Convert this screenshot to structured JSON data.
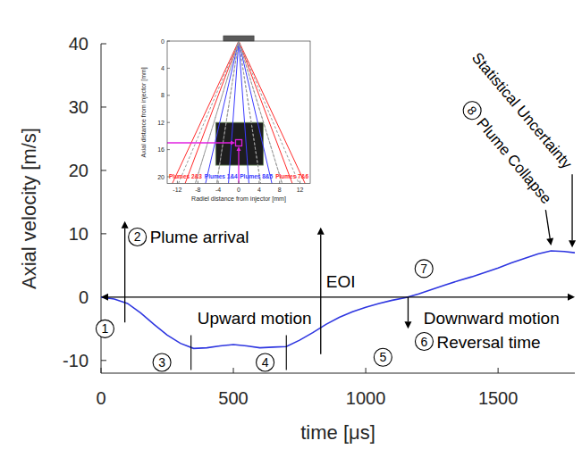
{
  "chart_data": [
    {
      "type": "line",
      "xlabel": "time [μs]",
      "ylabel": "Axial velocity [m/s]",
      "x": [
        0,
        50,
        100,
        150,
        200,
        250,
        300,
        350,
        400,
        450,
        500,
        550,
        600,
        650,
        700,
        750,
        800,
        850,
        900,
        950,
        1000,
        1050,
        1100,
        1150,
        1200,
        1250,
        1300,
        1350,
        1400,
        1450,
        1500,
        1550,
        1600,
        1650,
        1700,
        1750,
        1790
      ],
      "series": [
        {
          "color": "#2e36e0",
          "values": [
            0,
            -0.3,
            -1.0,
            -2.5,
            -4.3,
            -6.0,
            -7.3,
            -8.1,
            -8.0,
            -7.7,
            -7.5,
            -7.7,
            -8.0,
            -7.9,
            -7.8,
            -6.8,
            -5.6,
            -4.3,
            -3.2,
            -2.3,
            -1.6,
            -1.0,
            -0.5,
            -0.1,
            0.5,
            1.2,
            1.9,
            2.6,
            3.2,
            3.9,
            4.6,
            5.4,
            6.1,
            6.8,
            7.3,
            7.2,
            7.0
          ]
        }
      ],
      "xlim": [
        0,
        1790
      ],
      "ylim": [
        -12,
        40
      ],
      "xticks": [
        0,
        500,
        1000,
        1500
      ],
      "yticks": [
        -10,
        0,
        10,
        20,
        30,
        40
      ],
      "phase_boundaries": [
        340,
        700
      ],
      "phases": [
        {
          "label": "1",
          "x": 15,
          "y": -5
        },
        {
          "label": "3",
          "x": 230,
          "y": -10.3
        },
        {
          "label": "4",
          "x": 620,
          "y": -10.3
        },
        {
          "label": "5",
          "x": 1065,
          "y": -9.5
        },
        {
          "label": "7",
          "x": 1220,
          "y": 4.5
        }
      ],
      "events": [
        {
          "label": "Plume arrival",
          "phase": "2",
          "x": 90
        },
        {
          "label": "EOI",
          "x": 830
        },
        {
          "label": "Reversal time",
          "phase": "6",
          "x": 1160
        },
        {
          "label": "Plume Collapse",
          "phase": "8",
          "x": 1700
        },
        {
          "label": "Statistical Uncertainty",
          "x": 1780
        }
      ],
      "motions": [
        {
          "label": "Upward motion",
          "from": 1160,
          "to": 0
        },
        {
          "label": "Downward motion",
          "from": 1160,
          "to": 1790
        }
      ]
    },
    {
      "type": "line",
      "xlabel": "Radiel distance from injector [mm]",
      "ylabel": "Axial distance from injector [mm]",
      "xlim": [
        -14,
        14
      ],
      "ylim": [
        21,
        0
      ],
      "xticks": [
        -12,
        -8,
        -4,
        0,
        4,
        8,
        12
      ],
      "yticks": [
        0,
        4,
        8,
        12,
        16,
        20
      ],
      "series": [
        {
          "name": "Plumes 2&3",
          "color": "#ff2a2a",
          "x": [
            -13,
            0,
            -10.5
          ],
          "values": [
            21,
            0,
            21
          ]
        },
        {
          "name": "Plumes 1&4",
          "color": "#3a3aff",
          "x": [
            -6.5,
            0,
            -2
          ],
          "values": [
            21,
            0,
            21
          ]
        },
        {
          "name": "Plumes 8&5",
          "color": "#3a3aff",
          "x": [
            2,
            0,
            6.5
          ],
          "values": [
            21,
            0,
            21
          ]
        },
        {
          "name": "Plumes 7&6",
          "color": "#ff2a2a",
          "x": [
            10.5,
            0,
            13
          ],
          "values": [
            21,
            0,
            21
          ]
        },
        {
          "color": "#9a9a9a",
          "line_style": "dashed",
          "x": [
            -11.8,
            0,
            -8.5,
            0,
            -4.3,
            0,
            4.3,
            0,
            8.5,
            0,
            11.8
          ],
          "values": [
            21,
            0,
            21,
            0,
            21,
            0,
            21,
            0,
            21,
            0,
            21
          ]
        }
      ],
      "measurement_point": {
        "x": 0,
        "y": 15
      }
    }
  ]
}
